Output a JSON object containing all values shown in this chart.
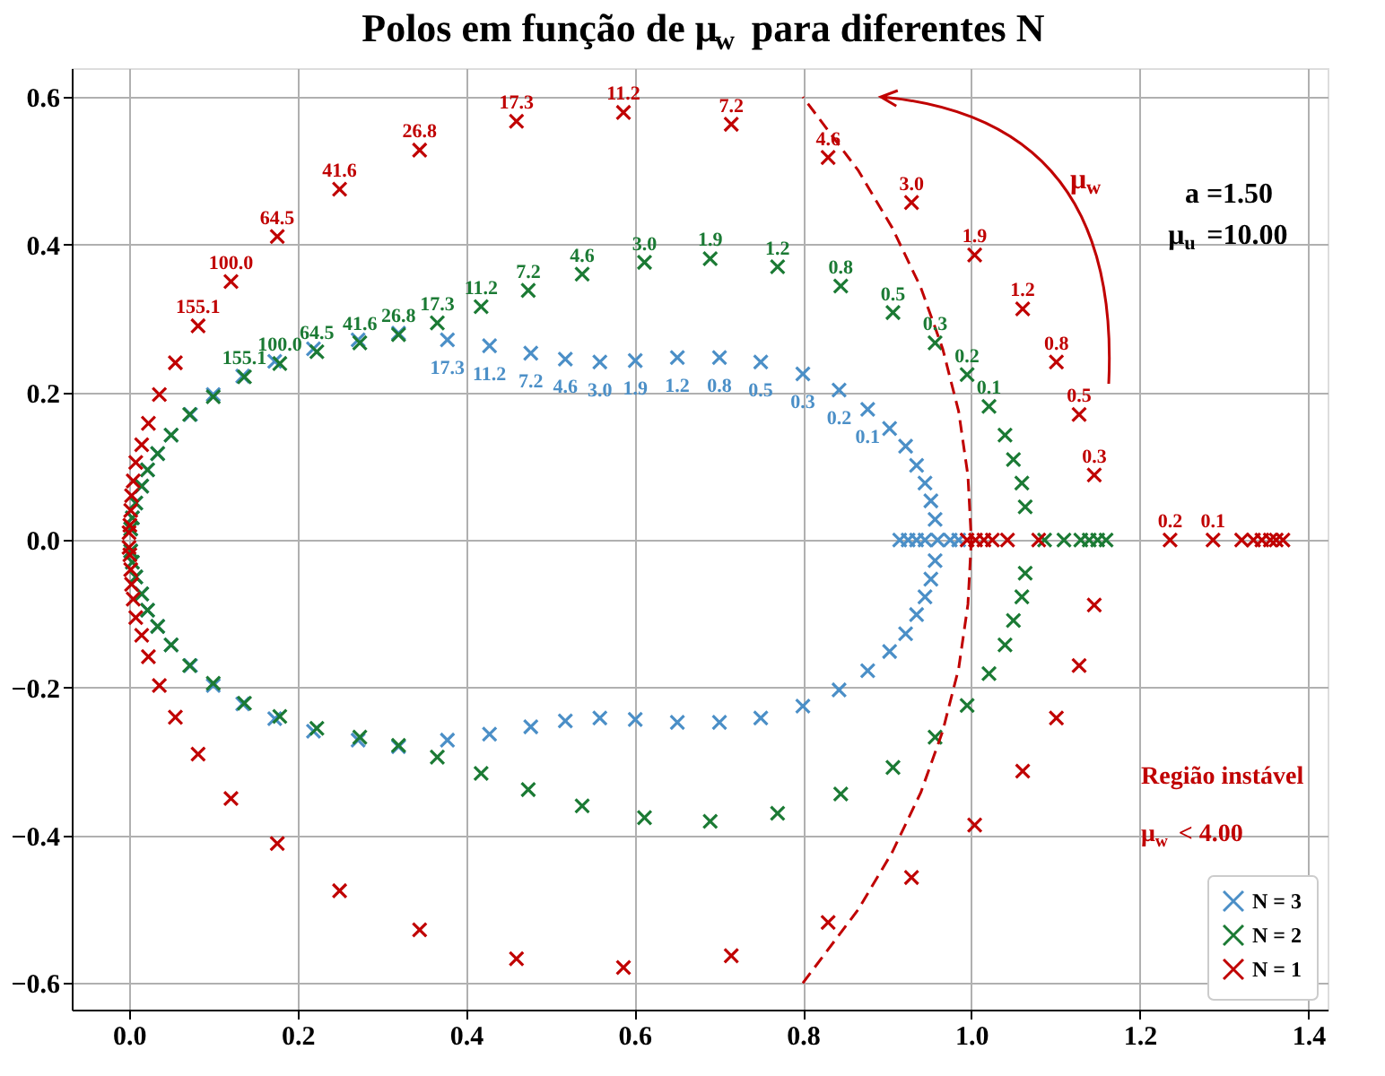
{
  "chart_data": {
    "type": "scatter",
    "title": "Polos em função de μ$_{w}$ para diferentes N",
    "xlim": [
      -0.068,
      1.423
    ],
    "ylim": [
      -0.636,
      0.639
    ],
    "xticks": [
      {
        "value": 0,
        "label": "0.0"
      },
      {
        "value": 0.2,
        "label": "0.2"
      },
      {
        "value": 0.4,
        "label": "0.4"
      },
      {
        "value": 0.6,
        "label": "0.6"
      },
      {
        "value": 0.8,
        "label": "0.8"
      },
      {
        "value": 1,
        "label": "1.0"
      },
      {
        "value": 1.2,
        "label": "1.2"
      },
      {
        "value": 1.4,
        "label": "1.4"
      }
    ],
    "yticks": [
      {
        "value": -0.6,
        "label": "−0.6"
      },
      {
        "value": -0.4,
        "label": "−0.4"
      },
      {
        "value": -0.2,
        "label": "−0.2"
      },
      {
        "value": 0,
        "label": "0.0"
      },
      {
        "value": 0.2,
        "label": "0.2"
      },
      {
        "value": 0.4,
        "label": "0.4"
      },
      {
        "value": 0.6,
        "label": "0.6"
      }
    ],
    "grid": true,
    "legend": "bottom right",
    "marker": "cross",
    "annotations": [
      "a =1.50",
      "μ$_{u}$ =10.00",
      "μ$_{w}$",
      "Região instável",
      "μ$_{w}$ < 4.00",
      {
        "text": "17.3",
        "x": 0.378,
        "y": 0.271
      },
      {
        "text": "11.2",
        "x": 0.428,
        "y": 0.263
      },
      {
        "text": "7.2",
        "x": 0.477,
        "y": 0.253
      },
      {
        "text": "4.6",
        "x": 0.518,
        "y": 0.245
      },
      {
        "text": "3.0",
        "x": 0.559,
        "y": 0.241
      },
      {
        "text": "1.9",
        "x": 0.601,
        "y": 0.243
      },
      {
        "text": "1.2",
        "x": 0.651,
        "y": 0.247
      },
      {
        "text": "0.8",
        "x": 0.701,
        "y": 0.247
      },
      {
        "text": "0.5",
        "x": 0.75,
        "y": 0.241
      },
      {
        "text": "0.3",
        "x": 0.8,
        "y": 0.225
      },
      {
        "text": "0.2",
        "x": 0.843,
        "y": 0.203
      },
      {
        "text": "0.1",
        "x": 0.877,
        "y": 0.177
      },
      {
        "text": "155.1",
        "x": 0.137,
        "y": 0.221
      },
      {
        "text": "100.0",
        "x": 0.179,
        "y": 0.239
      },
      {
        "text": "64.5",
        "x": 0.223,
        "y": 0.255
      },
      {
        "text": "41.6",
        "x": 0.274,
        "y": 0.267
      },
      {
        "text": "26.8",
        "x": 0.32,
        "y": 0.278
      },
      {
        "text": "17.3",
        "x": 0.366,
        "y": 0.294
      },
      {
        "text": "11.2",
        "x": 0.418,
        "y": 0.316
      },
      {
        "text": "7.2",
        "x": 0.474,
        "y": 0.338
      },
      {
        "text": "4.6",
        "x": 0.538,
        "y": 0.36
      },
      {
        "text": "3.0",
        "x": 0.612,
        "y": 0.376
      },
      {
        "text": "1.9",
        "x": 0.69,
        "y": 0.381
      },
      {
        "text": "1.2",
        "x": 0.77,
        "y": 0.37
      },
      {
        "text": "0.8",
        "x": 0.845,
        "y": 0.344
      },
      {
        "text": "0.5",
        "x": 0.907,
        "y": 0.308
      },
      {
        "text": "0.3",
        "x": 0.957,
        "y": 0.267
      },
      {
        "text": "0.2",
        "x": 0.995,
        "y": 0.224
      },
      {
        "text": "0.1",
        "x": 1.021,
        "y": 0.181
      },
      {
        "text": "155.1",
        "x": 0.082,
        "y": 0.29
      },
      {
        "text": "100.0",
        "x": 0.121,
        "y": 0.35
      },
      {
        "text": "64.5",
        "x": 0.176,
        "y": 0.411
      },
      {
        "text": "41.6",
        "x": 0.25,
        "y": 0.475
      },
      {
        "text": "26.8",
        "x": 0.345,
        "y": 0.528
      },
      {
        "text": "17.3",
        "x": 0.46,
        "y": 0.567
      },
      {
        "text": "11.2",
        "x": 0.587,
        "y": 0.579
      },
      {
        "text": "7.2",
        "x": 0.715,
        "y": 0.563
      },
      {
        "text": "4.6",
        "x": 0.83,
        "y": 0.518
      },
      {
        "text": "3.0",
        "x": 0.929,
        "y": 0.457
      },
      {
        "text": "1.9",
        "x": 1.004,
        "y": 0.386
      },
      {
        "text": "1.2",
        "x": 1.061,
        "y": 0.313
      },
      {
        "text": "0.8",
        "x": 1.101,
        "y": 0.241
      },
      {
        "text": "0.5",
        "x": 1.128,
        "y": 0.17
      },
      {
        "text": "0.3",
        "x": 1.146,
        "y": 0.088
      },
      {
        "text": "0.2",
        "x": 1.236,
        "y": 0
      },
      {
        "text": "0.1",
        "x": 1.287,
        "y": 0
      }
    ],
    "series": [
      {
        "name": "N = 3",
        "color": "#4b8fc7",
        "x": [
          0.002,
          0.004,
          0.008,
          0.015,
          0.022,
          0.034,
          0.05,
          0.073,
          0.1,
          0.135,
          0.173,
          0.219,
          0.272,
          0.32,
          0.378,
          0.428,
          0.477,
          0.518,
          0.559,
          0.601,
          0.651,
          0.701,
          0.75,
          0.8,
          0.843,
          0.877,
          0.903,
          0.922,
          0.935,
          0.945,
          0.952,
          0.957,
          0.915,
          0.925,
          0.935,
          0.945,
          0.96,
          0.975,
          0.985,
          0.002,
          0.004,
          0.008,
          0.015,
          0.022,
          0.034,
          0.05,
          0.073,
          0.1,
          0.135,
          0.173,
          0.219,
          0.272,
          0.32,
          0.378,
          0.428,
          0.477,
          0.518,
          0.559,
          0.601,
          0.651,
          0.701,
          0.75,
          0.8,
          0.843,
          0.877,
          0.903,
          0.922,
          0.935,
          0.945,
          0.952,
          0.957
        ],
        "values": [
          0.015,
          0.03,
          0.05,
          0.073,
          0.095,
          0.117,
          0.142,
          0.17,
          0.197,
          0.222,
          0.242,
          0.259,
          0.271,
          0.28,
          0.271,
          0.263,
          0.253,
          0.245,
          0.241,
          0.243,
          0.247,
          0.247,
          0.241,
          0.225,
          0.203,
          0.177,
          0.151,
          0.127,
          0.101,
          0.077,
          0.053,
          0.028,
          0,
          0,
          0,
          0,
          0,
          0,
          0,
          -0.015,
          -0.03,
          -0.05,
          -0.073,
          -0.095,
          -0.117,
          -0.142,
          -0.17,
          -0.197,
          -0.222,
          -0.242,
          -0.259,
          -0.271,
          -0.28,
          -0.271,
          -0.263,
          -0.253,
          -0.245,
          -0.241,
          -0.243,
          -0.247,
          -0.247,
          -0.241,
          -0.225,
          -0.203,
          -0.177,
          -0.151,
          -0.127,
          -0.101,
          -0.077,
          -0.053,
          -0.028
        ]
      },
      {
        "name": "N = 2",
        "color": "#1b7a34",
        "x": [
          0.002,
          0.004,
          0.008,
          0.015,
          0.022,
          0.034,
          0.05,
          0.072,
          0.1,
          0.137,
          0.179,
          0.223,
          0.274,
          0.32,
          0.366,
          0.418,
          0.474,
          0.538,
          0.612,
          0.69,
          0.77,
          0.845,
          0.907,
          0.957,
          0.995,
          1.021,
          1.04,
          1.05,
          1.06,
          1.064,
          1.087,
          1.11,
          1.13,
          1.14,
          1.15,
          1.16,
          0.002,
          0.004,
          0.008,
          0.015,
          0.022,
          0.034,
          0.05,
          0.072,
          0.1,
          0.137,
          0.179,
          0.223,
          0.274,
          0.32,
          0.366,
          0.418,
          0.474,
          0.538,
          0.612,
          0.69,
          0.77,
          0.845,
          0.907,
          0.957,
          0.995,
          1.021,
          1.04,
          1.05,
          1.06,
          1.064
        ],
        "values": [
          0.015,
          0.03,
          0.05,
          0.073,
          0.095,
          0.117,
          0.142,
          0.17,
          0.194,
          0.221,
          0.239,
          0.255,
          0.267,
          0.278,
          0.294,
          0.316,
          0.338,
          0.36,
          0.376,
          0.381,
          0.37,
          0.344,
          0.308,
          0.267,
          0.224,
          0.181,
          0.142,
          0.109,
          0.077,
          0.045,
          0,
          0,
          0,
          0,
          0,
          0,
          -0.015,
          -0.03,
          -0.05,
          -0.073,
          -0.095,
          -0.117,
          -0.142,
          -0.17,
          -0.194,
          -0.221,
          -0.239,
          -0.255,
          -0.267,
          -0.278,
          -0.294,
          -0.316,
          -0.338,
          -0.36,
          -0.376,
          -0.381,
          -0.37,
          -0.344,
          -0.308,
          -0.267,
          -0.224,
          -0.181,
          -0.142,
          -0.109,
          -0.077,
          -0.045
        ]
      },
      {
        "name": "N = 1",
        "color": "#c00000",
        "x": [
          0,
          0.001,
          0.002,
          0.003,
          0.005,
          0.008,
          0.015,
          0.023,
          0.036,
          0.055,
          0.082,
          0.121,
          0.176,
          0.25,
          0.345,
          0.46,
          0.587,
          0.715,
          0.83,
          0.929,
          1.004,
          1.061,
          1.101,
          1.128,
          1.146,
          0.995,
          1.005,
          1.015,
          1.025,
          1.043,
          1.08,
          1.236,
          1.287,
          1.321,
          1.335,
          1.345,
          1.355,
          1.362,
          1.37,
          0,
          0.001,
          0.002,
          0.003,
          0.005,
          0.008,
          0.015,
          0.023,
          0.036,
          0.055,
          0.082,
          0.121,
          0.176,
          0.25,
          0.345,
          0.46,
          0.587,
          0.715,
          0.83,
          0.929,
          1.004,
          1.061,
          1.101,
          1.128,
          1.146
        ],
        "values": [
          0.01,
          0.02,
          0.04,
          0.06,
          0.08,
          0.105,
          0.129,
          0.158,
          0.197,
          0.24,
          0.29,
          0.35,
          0.411,
          0.475,
          0.528,
          0.567,
          0.579,
          0.563,
          0.518,
          0.457,
          0.386,
          0.313,
          0.241,
          0.17,
          0.088,
          0,
          0,
          0,
          0,
          0,
          0,
          0,
          0,
          0,
          0,
          0,
          0,
          0,
          0,
          -0.01,
          -0.02,
          -0.04,
          -0.06,
          -0.08,
          -0.105,
          -0.129,
          -0.158,
          -0.197,
          -0.24,
          -0.29,
          -0.35,
          -0.411,
          -0.475,
          -0.528,
          -0.567,
          -0.579,
          -0.563,
          -0.518,
          -0.457,
          -0.386,
          -0.313,
          -0.241,
          -0.17,
          -0.088
        ]
      },
      {
        "type": "line",
        "color": "#c00000",
        "line_style": "dashed",
        "marker": "none",
        "x": [
          0.8,
          0.866,
          0.906,
          0.94,
          0.966,
          0.985,
          0.996,
          1,
          0.996,
          0.985,
          0.966,
          0.94,
          0.906,
          0.866,
          0.8
        ],
        "values": [
          -0.6,
          -0.5,
          -0.423,
          -0.342,
          -0.259,
          -0.174,
          -0.087,
          0,
          0.087,
          0.174,
          0.259,
          0.342,
          0.423,
          0.5,
          0.6
        ]
      }
    ]
  }
}
